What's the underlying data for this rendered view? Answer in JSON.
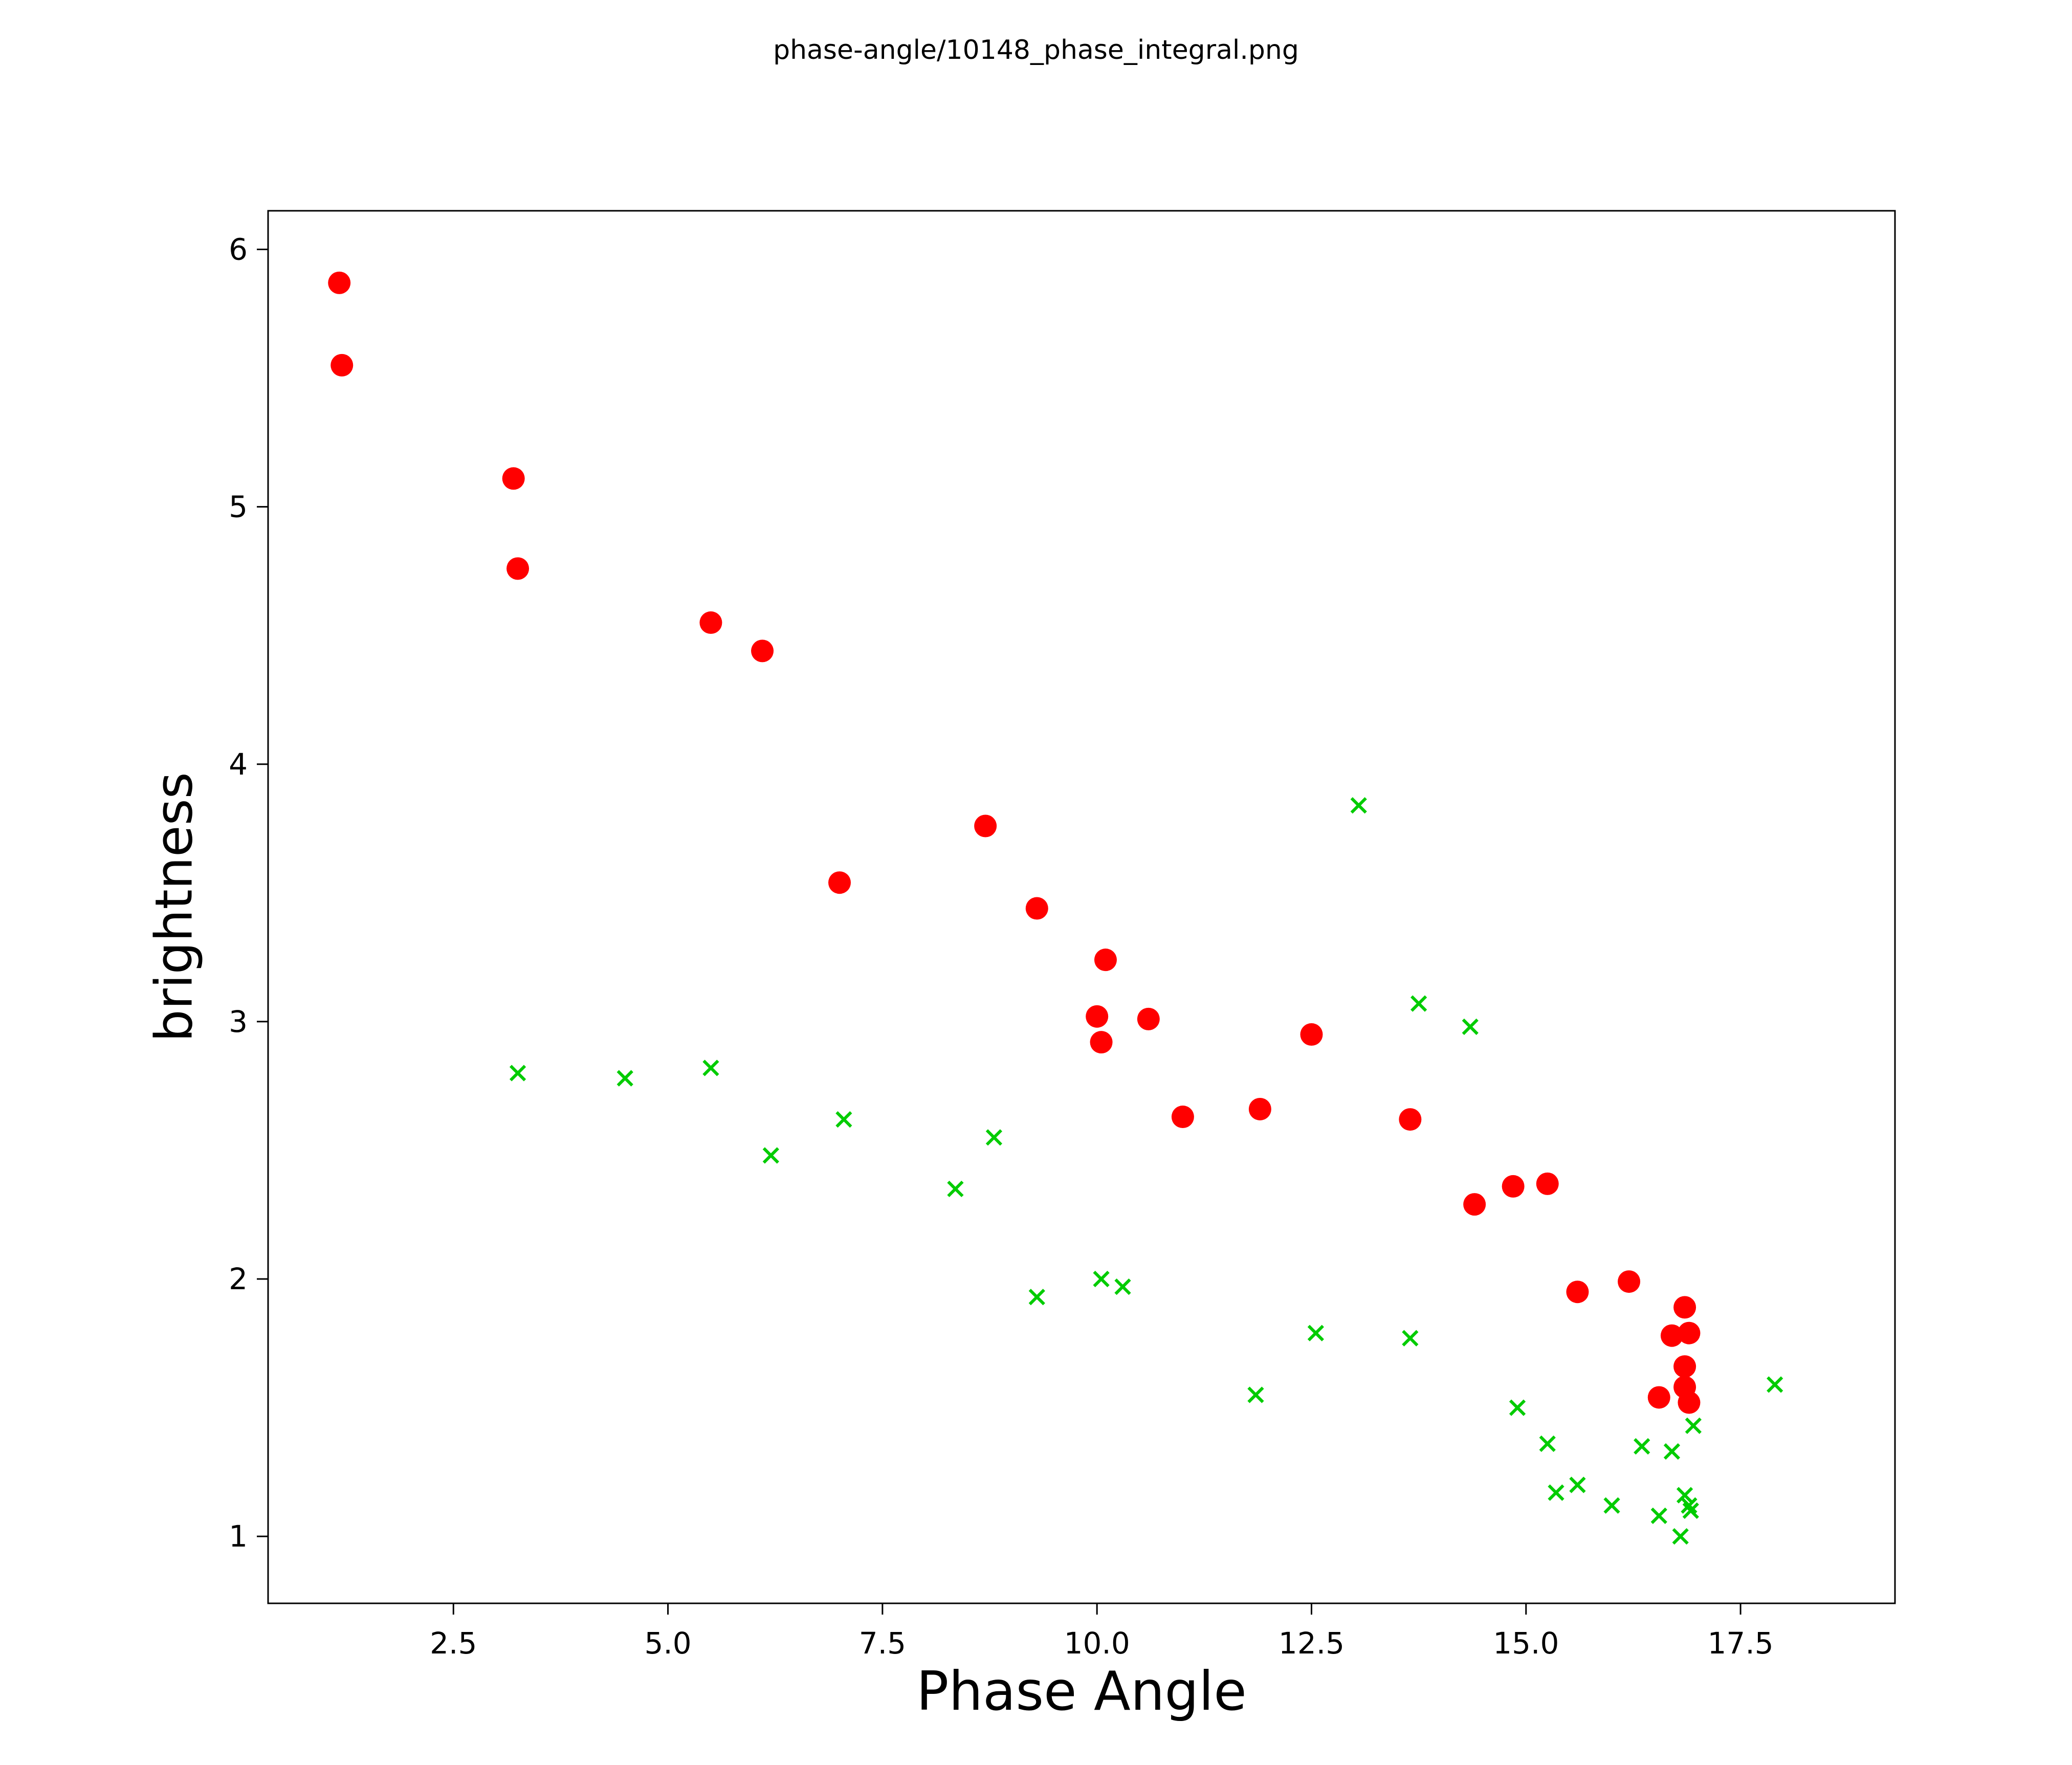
{
  "figure": {
    "title": "phase-angle/10148_phase_integral.png",
    "background": "#ffffff"
  },
  "chart_data": {
    "type": "scatter",
    "title": "phase-angle/10148_phase_integral.png",
    "xlabel": "Phase Angle",
    "ylabel": "brightness",
    "xlim": [
      0.34,
      19.3
    ],
    "ylim": [
      0.74,
      6.15
    ],
    "grid": false,
    "legend": "none",
    "xticks": {
      "values": [
        2.5,
        5.0,
        7.5,
        10.0,
        12.5,
        15.0,
        17.5
      ],
      "labels": [
        "2.5",
        "5.0",
        "7.5",
        "10.0",
        "12.5",
        "15.0",
        "17.5"
      ]
    },
    "yticks": {
      "values": [
        1,
        2,
        3,
        4,
        5,
        6
      ],
      "labels": [
        "1",
        "2",
        "3",
        "4",
        "5",
        "6"
      ]
    },
    "series": [
      {
        "name": "red-circles",
        "marker": "circle",
        "color": "#ff0000",
        "points": [
          [
            1.17,
            5.87
          ],
          [
            1.2,
            5.55
          ],
          [
            3.2,
            5.11
          ],
          [
            3.25,
            4.76
          ],
          [
            5.5,
            4.55
          ],
          [
            6.1,
            4.44
          ],
          [
            7.0,
            3.54
          ],
          [
            8.7,
            3.76
          ],
          [
            9.3,
            3.44
          ],
          [
            10.1,
            3.24
          ],
          [
            10.0,
            3.02
          ],
          [
            10.05,
            2.92
          ],
          [
            10.6,
            3.01
          ],
          [
            11.0,
            2.63
          ],
          [
            11.9,
            2.66
          ],
          [
            12.5,
            2.95
          ],
          [
            13.65,
            2.62
          ],
          [
            14.4,
            2.29
          ],
          [
            14.85,
            2.36
          ],
          [
            15.25,
            2.37
          ],
          [
            15.6,
            1.95
          ],
          [
            16.2,
            1.99
          ],
          [
            16.55,
            1.54
          ],
          [
            16.7,
            1.78
          ],
          [
            16.85,
            1.89
          ],
          [
            16.9,
            1.79
          ],
          [
            16.85,
            1.66
          ],
          [
            16.85,
            1.58
          ],
          [
            16.9,
            1.52
          ]
        ]
      },
      {
        "name": "green-crosses",
        "marker": "x",
        "color": "#00cc00",
        "points": [
          [
            3.25,
            2.8
          ],
          [
            4.5,
            2.78
          ],
          [
            5.5,
            2.82
          ],
          [
            6.2,
            2.48
          ],
          [
            7.05,
            2.62
          ],
          [
            8.35,
            2.35
          ],
          [
            8.8,
            2.55
          ],
          [
            9.3,
            1.93
          ],
          [
            10.05,
            2.0
          ],
          [
            10.3,
            1.97
          ],
          [
            11.85,
            1.55
          ],
          [
            12.55,
            1.79
          ],
          [
            13.05,
            3.84
          ],
          [
            13.65,
            1.77
          ],
          [
            13.75,
            3.07
          ],
          [
            14.35,
            2.98
          ],
          [
            14.9,
            1.5
          ],
          [
            15.25,
            1.36
          ],
          [
            15.35,
            1.17
          ],
          [
            15.6,
            1.2
          ],
          [
            16.0,
            1.12
          ],
          [
            16.35,
            1.35
          ],
          [
            16.55,
            1.08
          ],
          [
            16.7,
            1.33
          ],
          [
            16.8,
            1.0
          ],
          [
            16.85,
            1.16
          ],
          [
            16.9,
            1.12
          ],
          [
            16.92,
            1.1
          ],
          [
            16.95,
            1.43
          ],
          [
            17.9,
            1.59
          ]
        ]
      }
    ]
  }
}
